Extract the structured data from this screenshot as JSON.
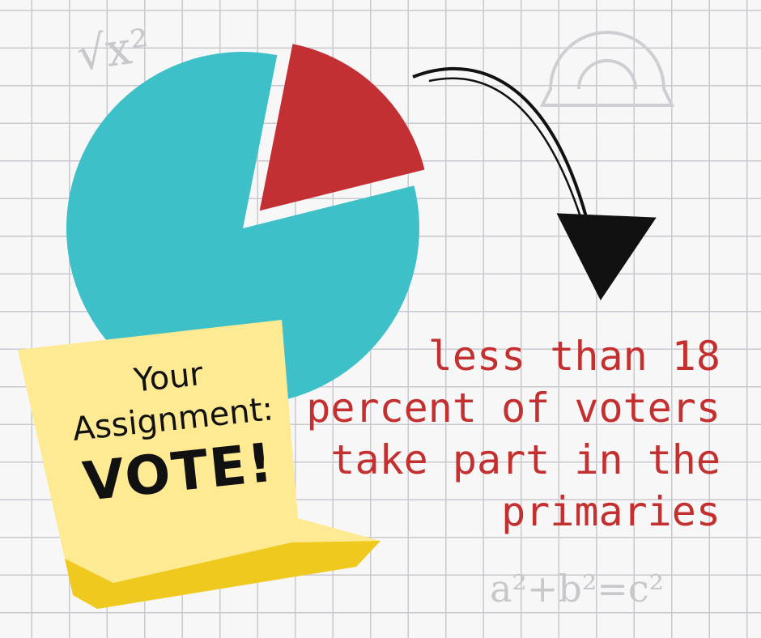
{
  "chart_data": {
    "type": "pie",
    "values": [
      82,
      18
    ],
    "colors": [
      "#3dc0c8",
      "#c23033"
    ],
    "exploded_slice": 1,
    "title": "",
    "legend": "none"
  },
  "sticky_note": {
    "line1": "Your",
    "line2": "Assignment:",
    "line3": "VOTE!",
    "color": "#fdea92"
  },
  "caption": {
    "lines": [
      "less than 18",
      "percent of voters",
      "take part in the",
      "primaries"
    ],
    "color": "#c3302f"
  },
  "decorations": {
    "formula_top": "√x²",
    "formula_bottom": "a²+b²=c²"
  }
}
